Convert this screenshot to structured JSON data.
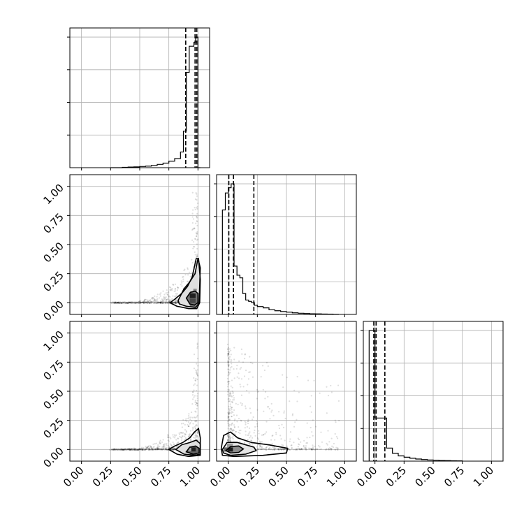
{
  "chart_data": {
    "type": "corner",
    "grid": true,
    "axis_range": [
      -0.1,
      1.1
    ],
    "tick_labels": [
      "0.00",
      "0.25",
      "0.50",
      "0.75",
      "1.00"
    ],
    "tick_values": [
      0,
      0.25,
      0.5,
      0.75,
      1.0
    ],
    "histograms": [
      {
        "param_index": 0,
        "bin_edges": [
          0.25,
          0.3,
          0.35,
          0.4,
          0.45,
          0.5,
          0.55,
          0.6,
          0.65,
          0.7,
          0.75,
          0.8,
          0.85,
          0.875,
          0.9,
          0.925,
          0.95,
          0.965,
          0.98,
          0.99,
          1.0,
          1.02
        ],
        "counts": [
          0,
          0,
          0.003,
          0.005,
          0.006,
          0.009,
          0.012,
          0.017,
          0.025,
          0.035,
          0.05,
          0.07,
          0.12,
          0.28,
          0.73,
          0.93,
          0.93,
          0.96,
          1.0,
          1.0,
          0.0
        ],
        "quantiles": [
          0.895,
          0.975,
          0.99
        ]
      },
      {
        "param_index": 1,
        "bin_edges": [
          -0.05,
          -0.025,
          0,
          0.025,
          0.05,
          0.075,
          0.1,
          0.125,
          0.15,
          0.175,
          0.2,
          0.225,
          0.25,
          0.3,
          0.35,
          0.4,
          0.45,
          0.5,
          0.55,
          0.6,
          0.65,
          0.7,
          0.75,
          0.8,
          0.85,
          0.9,
          0.95
        ],
        "counts": [
          0.8,
          0.93,
          0.97,
          1.0,
          0.37,
          0.3,
          0.28,
          0.16,
          0.11,
          0.1,
          0.09,
          0.07,
          0.06,
          0.05,
          0.035,
          0.028,
          0.022,
          0.017,
          0.012,
          0.009,
          0.007,
          0.005,
          0.004,
          0.003,
          0.002,
          0.0
        ],
        "quantiles": [
          0.005,
          0.045,
          0.22
        ]
      },
      {
        "param_index": 2,
        "bin_edges": [
          -0.05,
          -0.025,
          0,
          0.025,
          0.05,
          0.075,
          0.1,
          0.125,
          0.15,
          0.2,
          0.25,
          0.3,
          0.35,
          0.4,
          0.45,
          0.5,
          0.55,
          0.6,
          0.65,
          0.7,
          0.75
        ],
        "counts": [
          1.0,
          1.0,
          0.33,
          0.33,
          0.33,
          0.33,
          0.1,
          0.1,
          0.06,
          0.04,
          0.03,
          0.022,
          0.016,
          0.012,
          0.009,
          0.007,
          0.005,
          0.004,
          0.003,
          0.002
        ],
        "quantiles": [
          -0.01,
          0.01,
          0.085
        ]
      }
    ],
    "pairs": [
      {
        "x_param": 0,
        "y_param": 1,
        "hist_cells": [
          {
            "x": 0.955,
            "y": 0.06,
            "w": 0.05,
            "h": 0.04,
            "shade": 0.88
          },
          {
            "x": 0.955,
            "y": 0.015,
            "w": 0.05,
            "h": 0.04,
            "shade": 0.72
          },
          {
            "x": 0.955,
            "y": -0.02,
            "w": 0.05,
            "h": 0.035,
            "shade": 0.55
          },
          {
            "x": 0.975,
            "y": 0.1,
            "w": 0.03,
            "h": 0.04,
            "shade": 0.45
          }
        ],
        "contour_levels": [
          {
            "points": [
              [
                0.9,
                0.04
              ],
              [
                0.935,
                0.09
              ],
              [
                0.975,
                0.1
              ],
              [
                1.0,
                0.08
              ],
              [
                1.0,
                0.0
              ],
              [
                0.97,
                -0.02
              ],
              [
                0.93,
                -0.01
              ]
            ],
            "fill_shade": 0.55
          },
          {
            "points": [
              [
                0.83,
                0.02
              ],
              [
                0.88,
                0.12
              ],
              [
                0.93,
                0.18
              ],
              [
                0.975,
                0.25
              ],
              [
                1.0,
                0.38
              ],
              [
                1.02,
                0.3
              ],
              [
                1.01,
                0.0
              ],
              [
                0.98,
                -0.04
              ],
              [
                0.9,
                -0.03
              ],
              [
                0.84,
                -0.01
              ]
            ],
            "fill_shade": 0.12
          },
          {
            "points": [
              [
                0.76,
                0.0
              ],
              [
                0.8,
                0.03
              ],
              [
                0.86,
                0.08
              ],
              [
                0.91,
                0.14
              ],
              [
                0.95,
                0.22
              ],
              [
                0.985,
                0.38
              ],
              [
                1.005,
                0.38
              ],
              [
                1.02,
                0.2
              ],
              [
                1.015,
                0.0
              ],
              [
                0.99,
                -0.05
              ],
              [
                0.92,
                -0.05
              ],
              [
                0.82,
                -0.03
              ]
            ],
            "fill_shade": 0.0
          }
        ]
      },
      {
        "x_param": 0,
        "y_param": 2,
        "hist_cells": [
          {
            "x": 0.955,
            "y": 0.0,
            "w": 0.05,
            "h": 0.035,
            "shade": 0.88
          },
          {
            "x": 0.955,
            "y": -0.035,
            "w": 0.05,
            "h": 0.035,
            "shade": 0.6
          },
          {
            "x": 0.93,
            "y": 0.0,
            "w": 0.025,
            "h": 0.03,
            "shade": 0.35
          }
        ],
        "contour_levels": [
          {
            "points": [
              [
                0.9,
                -0.02
              ],
              [
                0.93,
                0.02
              ],
              [
                0.98,
                0.03
              ],
              [
                1.01,
                0.01
              ],
              [
                1.01,
                -0.03
              ],
              [
                0.96,
                -0.04
              ]
            ],
            "fill_shade": 0.6
          },
          {
            "points": [
              [
                0.81,
                0.0
              ],
              [
                0.86,
                0.04
              ],
              [
                0.93,
                0.06
              ],
              [
                0.985,
                0.08
              ],
              [
                1.02,
                0.05
              ],
              [
                1.02,
                -0.04
              ],
              [
                0.97,
                -0.05
              ],
              [
                0.88,
                -0.04
              ]
            ],
            "fill_shade": 0.12
          },
          {
            "points": [
              [
                0.75,
                0.0
              ],
              [
                0.8,
                0.03
              ],
              [
                0.87,
                0.06
              ],
              [
                0.93,
                0.1
              ],
              [
                0.97,
                0.15
              ],
              [
                1.005,
                0.18
              ],
              [
                1.02,
                0.1
              ],
              [
                1.02,
                -0.05
              ],
              [
                0.92,
                -0.06
              ],
              [
                0.82,
                -0.04
              ]
            ],
            "fill_shade": 0.0
          }
        ]
      },
      {
        "x_param": 1,
        "y_param": 2,
        "hist_cells": [
          {
            "x": 0.015,
            "y": 0.0,
            "w": 0.05,
            "h": 0.035,
            "shade": 0.9
          },
          {
            "x": -0.02,
            "y": 0.0,
            "w": 0.035,
            "h": 0.035,
            "shade": 0.6
          },
          {
            "x": 0.015,
            "y": 0.035,
            "w": 0.05,
            "h": 0.03,
            "shade": 0.4
          }
        ],
        "contour_levels": [
          {
            "points": [
              [
                -0.02,
                -0.01
              ],
              [
                0.02,
                0.025
              ],
              [
                0.09,
                0.03
              ],
              [
                0.13,
                0.005
              ],
              [
                0.09,
                -0.025
              ],
              [
                0.02,
                -0.03
              ]
            ],
            "fill_shade": 0.45
          },
          {
            "points": [
              [
                -0.05,
                0.0
              ],
              [
                -0.01,
                0.06
              ],
              [
                0.08,
                0.06
              ],
              [
                0.22,
                0.02
              ],
              [
                0.24,
                -0.01
              ],
              [
                0.15,
                -0.04
              ],
              [
                0.02,
                -0.05
              ],
              [
                -0.04,
                -0.03
              ]
            ],
            "fill_shade": 0.1
          },
          {
            "points": [
              [
                -0.06,
                0.01
              ],
              [
                -0.04,
                0.12
              ],
              [
                0.02,
                0.15
              ],
              [
                0.08,
                0.1
              ],
              [
                0.2,
                0.06
              ],
              [
                0.35,
                0.04
              ],
              [
                0.51,
                0.01
              ],
              [
                0.5,
                -0.03
              ],
              [
                0.3,
                -0.05
              ],
              [
                0.05,
                -0.06
              ],
              [
                -0.05,
                -0.05
              ]
            ],
            "fill_shade": 0.0
          }
        ]
      }
    ]
  }
}
